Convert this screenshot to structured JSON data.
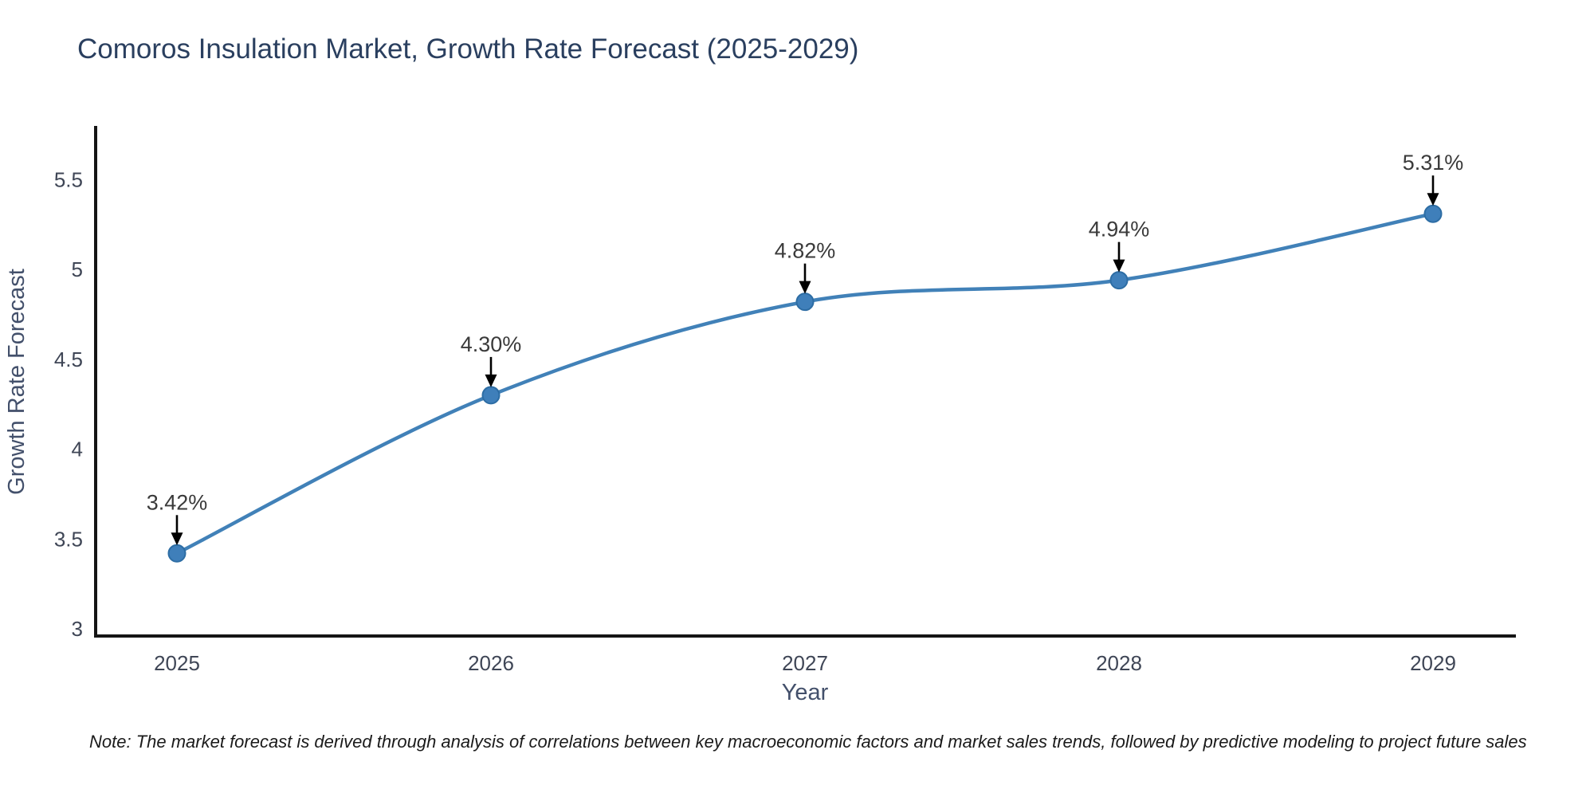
{
  "header": {
    "title": "Comoros Insulation Market, Growth Rate Forecast (2025-2029)"
  },
  "footnote": {
    "text": "Note: The market forecast is derived through analysis of correlations between key macroeconomic factors and market sales trends, followed by predictive modeling to project future sales"
  },
  "chart_data": {
    "type": "line",
    "title": "Comoros Insulation Market, Growth Rate Forecast (2025-2029)",
    "xlabel": "Year",
    "ylabel": "Growth Rate Forecast",
    "categories": [
      "2025",
      "2026",
      "2027",
      "2028",
      "2029"
    ],
    "series": [
      {
        "name": "Growth Rate Forecast",
        "values": [
          3.42,
          4.3,
          4.82,
          4.94,
          5.31
        ]
      }
    ],
    "point_labels": [
      "3.42%",
      "4.30%",
      "4.82%",
      "4.94%",
      "5.31%"
    ],
    "yticks": [
      "3",
      "3.5",
      "4",
      "4.5",
      "5",
      "5.5"
    ],
    "ytick_values": [
      3,
      3.5,
      4,
      4.5,
      5,
      5.5
    ],
    "ylim": [
      2.96,
      5.79
    ],
    "grid": false,
    "legend": false,
    "annotation_arrows": true,
    "colors": {
      "line": "#4181b8",
      "marker_fill": "#3f7fba",
      "marker_edge": "#2d6da4",
      "arrow": "#000000",
      "axis": "#151515",
      "title": "#2a3f5f",
      "tick_label": "#3f4656",
      "axis_label": "#43506b",
      "annotation": "#3a3a3a",
      "note": "#1b1b1b"
    }
  }
}
